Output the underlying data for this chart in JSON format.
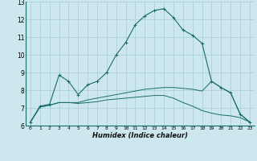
{
  "xlabel": "Humidex (Indice chaleur)",
  "x_ticks": [
    0,
    1,
    2,
    3,
    4,
    5,
    6,
    7,
    8,
    9,
    10,
    11,
    12,
    13,
    14,
    15,
    16,
    17,
    18,
    19,
    20,
    21,
    22,
    23
  ],
  "xlim": [
    -0.5,
    23.5
  ],
  "ylim": [
    6,
    13
  ],
  "y_ticks": [
    6,
    7,
    8,
    9,
    10,
    11,
    12,
    13
  ],
  "bg_color": "#cce8ee",
  "grid_color": "#a8cdd5",
  "line_color": "#1a6b6b",
  "line1_x": [
    0,
    1,
    2,
    3,
    4,
    5,
    6,
    7,
    8,
    9,
    10,
    11,
    12,
    13,
    14,
    15,
    16,
    17,
    18,
    19,
    20,
    21,
    22,
    23
  ],
  "line1_y": [
    6.2,
    7.1,
    7.2,
    8.85,
    8.5,
    7.75,
    8.3,
    8.5,
    9.0,
    10.0,
    10.7,
    11.7,
    12.2,
    12.5,
    12.6,
    12.1,
    11.4,
    11.1,
    10.65,
    8.5,
    8.15,
    7.85,
    6.65,
    6.2
  ],
  "line2_x": [
    0,
    1,
    2,
    3,
    4,
    5,
    6,
    7,
    8,
    9,
    10,
    11,
    12,
    13,
    14,
    15,
    16,
    17,
    18,
    19,
    20,
    21,
    22,
    23
  ],
  "line2_y": [
    6.2,
    7.05,
    7.15,
    7.3,
    7.3,
    7.3,
    7.45,
    7.55,
    7.65,
    7.75,
    7.85,
    7.95,
    8.05,
    8.1,
    8.15,
    8.15,
    8.1,
    8.05,
    7.95,
    8.5,
    8.15,
    7.85,
    6.65,
    6.2
  ],
  "line3_x": [
    0,
    1,
    2,
    3,
    4,
    5,
    6,
    7,
    8,
    9,
    10,
    11,
    12,
    13,
    14,
    15,
    16,
    17,
    18,
    19,
    20,
    21,
    22,
    23
  ],
  "line3_y": [
    6.2,
    7.05,
    7.15,
    7.3,
    7.3,
    7.25,
    7.3,
    7.35,
    7.45,
    7.5,
    7.55,
    7.6,
    7.65,
    7.7,
    7.7,
    7.55,
    7.3,
    7.1,
    6.85,
    6.7,
    6.6,
    6.55,
    6.45,
    6.2
  ]
}
